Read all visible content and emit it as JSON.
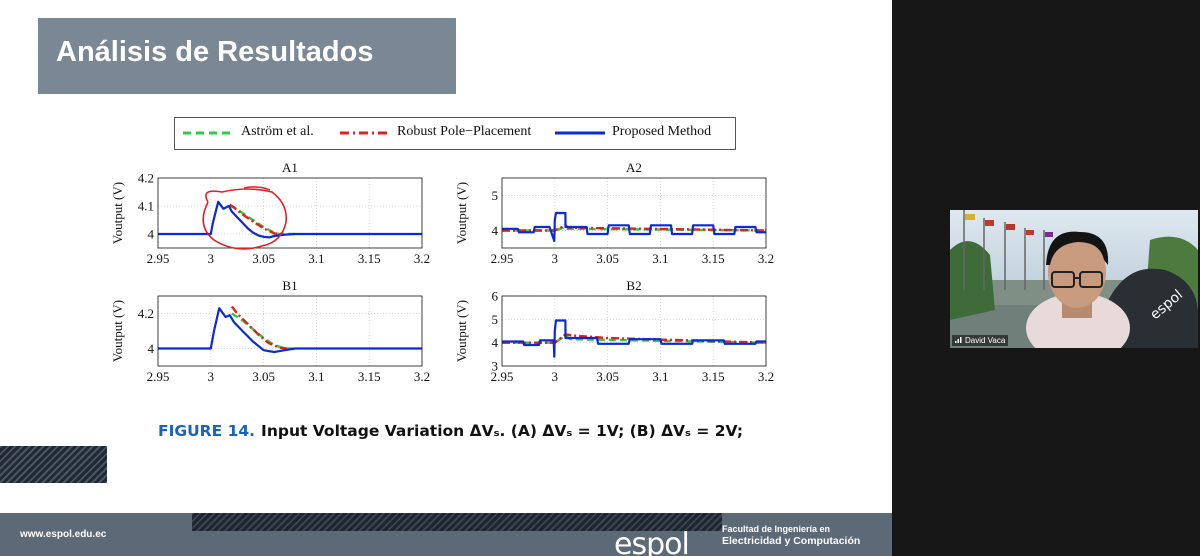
{
  "slide": {
    "title": "Análisis de Resultados",
    "legend": [
      {
        "label": "Aström et al.",
        "color": "#2ecc40",
        "style": "dashed"
      },
      {
        "label": "Robust Pole−Placement",
        "color": "#dd2222",
        "style": "dashdot"
      },
      {
        "label": "Proposed Method",
        "color": "#0a2ad8",
        "style": "solid"
      }
    ],
    "caption": {
      "figure": "FIGURE 14.",
      "text": "Input Voltage Variation ΔVₛ. (A) ΔVₛ = 1V; (B) ΔVₛ = 2V;"
    },
    "footer": {
      "url": "www.espol.edu.ec",
      "logo": "espol",
      "faculty_line1": "Facultad de Ingeniería en",
      "faculty_line2": "Electricidad y Computación"
    }
  },
  "chart_data": [
    {
      "type": "line",
      "title": "A1",
      "ylabel": "Voutput (V)",
      "xlim": [
        2.95,
        3.2
      ],
      "ylim": [
        3.95,
        4.2
      ],
      "xticks": [
        "2.95",
        "3",
        "3.05",
        "3.1",
        "3.15",
        "3.2"
      ],
      "yticks": [
        "4",
        "4.1",
        "4.2"
      ],
      "grid": true,
      "series": [
        {
          "name": "Aström et al.",
          "color": "#2ecc40",
          "style": "dashed",
          "x": [
            3.018,
            3.022,
            3.03,
            3.04,
            3.05,
            3.06,
            3.065,
            3.08
          ],
          "y": [
            4.1,
            4.095,
            4.075,
            4.05,
            4.025,
            4.005,
            4.0,
            4.0
          ]
        },
        {
          "name": "Robust Pole−Placement",
          "color": "#dd2222",
          "style": "dashdot",
          "x": [
            3.018,
            3.022,
            3.03,
            3.04,
            3.05,
            3.06,
            3.068
          ],
          "y": [
            4.105,
            4.095,
            4.07,
            4.045,
            4.02,
            4.002,
            4.0
          ]
        },
        {
          "name": "Proposed Method",
          "color": "#0a2ad8",
          "style": "solid",
          "x": [
            2.95,
            3.0,
            3.002,
            3.007,
            3.012,
            3.017,
            3.02,
            3.025,
            3.03,
            3.035,
            3.04,
            3.045,
            3.05,
            3.055,
            3.06,
            3.07,
            3.08,
            3.1,
            3.2
          ],
          "y": [
            4.0,
            4.0,
            4.04,
            4.115,
            4.09,
            4.1,
            4.08,
            4.06,
            4.04,
            4.02,
            4.005,
            3.995,
            3.99,
            3.988,
            3.993,
            3.998,
            4.0,
            4.0,
            4.0
          ]
        }
      ]
    },
    {
      "type": "line",
      "title": "A2",
      "ylabel": "Voutput (V)",
      "xlim": [
        2.95,
        3.2
      ],
      "ylim": [
        3.5,
        5.5
      ],
      "xticks": [
        "2.95",
        "3",
        "3.05",
        "3.1",
        "3.15",
        "3.2"
      ],
      "yticks": [
        "4",
        "5"
      ],
      "grid": true,
      "series": [
        {
          "name": "Aström et al.",
          "color": "#2ecc40",
          "style": "dashed",
          "x": [
            2.95,
            3.0,
            3.01,
            3.012,
            3.2
          ],
          "y": [
            4.0,
            4.0,
            4.1,
            4.05,
            4.0
          ]
        },
        {
          "name": "Robust Pole−Placement",
          "color": "#dd2222",
          "style": "dashdot",
          "x": [
            2.95,
            3.0,
            3.01,
            3.013,
            3.2
          ],
          "y": [
            4.0,
            4.0,
            4.15,
            4.08,
            4.0
          ]
        },
        {
          "name": "Proposed Method",
          "color": "#0a2ad8",
          "style": "solid",
          "x": [
            2.95,
            2.965,
            2.966,
            2.98,
            2.981,
            2.995,
            2.9995,
            3.0,
            3.001,
            3.01,
            3.0101,
            3.03,
            3.031,
            3.05,
            3.051,
            3.07,
            3.071,
            3.09,
            3.091,
            3.11,
            3.111,
            3.13,
            3.131,
            3.15,
            3.151,
            3.17,
            3.171,
            3.19,
            3.191,
            3.2
          ],
          "y": [
            4.05,
            4.05,
            3.95,
            3.95,
            4.1,
            4.1,
            3.7,
            4.3,
            4.5,
            4.5,
            4.1,
            4.1,
            3.9,
            3.9,
            4.15,
            4.15,
            3.9,
            3.9,
            4.15,
            4.15,
            3.9,
            3.9,
            4.15,
            4.15,
            3.9,
            3.9,
            4.1,
            4.1,
            3.95,
            3.95
          ]
        }
      ]
    },
    {
      "type": "line",
      "title": "B1",
      "ylabel": "Voutput (V)",
      "xlim": [
        2.95,
        3.2
      ],
      "ylim": [
        3.9,
        4.3
      ],
      "xticks": [
        "2.95",
        "3",
        "3.05",
        "3.1",
        "3.15",
        "3.2"
      ],
      "yticks": [
        "4",
        "4.2"
      ],
      "grid": true,
      "series": [
        {
          "name": "Aström et al.",
          "color": "#2ecc40",
          "style": "dashed",
          "x": [
            3.02,
            3.03,
            3.04,
            3.05,
            3.06,
            3.07,
            3.08
          ],
          "y": [
            4.2,
            4.16,
            4.11,
            4.06,
            4.02,
            4.0,
            4.0
          ]
        },
        {
          "name": "Robust Pole−Placement",
          "color": "#dd2222",
          "style": "dashdot",
          "x": [
            3.02,
            3.025,
            3.035,
            3.045,
            3.055,
            3.065,
            3.072
          ],
          "y": [
            4.24,
            4.2,
            4.14,
            4.08,
            4.03,
            4.005,
            4.0
          ]
        },
        {
          "name": "Proposed Method",
          "color": "#0a2ad8",
          "style": "solid",
          "x": [
            2.95,
            3.0,
            3.003,
            3.008,
            3.014,
            3.018,
            3.022,
            3.03,
            3.04,
            3.05,
            3.06,
            3.07,
            3.08,
            3.1,
            3.2
          ],
          "y": [
            4.0,
            4.0,
            4.1,
            4.23,
            4.18,
            4.19,
            4.15,
            4.1,
            4.04,
            3.99,
            3.98,
            3.99,
            4.0,
            4.0,
            4.0
          ]
        }
      ]
    },
    {
      "type": "line",
      "title": "B2",
      "ylabel": "Voutput (V)",
      "xlim": [
        2.95,
        3.2
      ],
      "ylim": [
        3.0,
        6.0
      ],
      "xticks": [
        "2.95",
        "3",
        "3.05",
        "3.1",
        "3.15",
        "3.2"
      ],
      "yticks": [
        "3",
        "4",
        "5",
        "6"
      ],
      "grid": true,
      "series": [
        {
          "name": "Aström et al.",
          "color": "#2ecc40",
          "style": "dashed",
          "x": [
            2.95,
            3.0,
            3.01,
            3.015,
            3.2
          ],
          "y": [
            4.0,
            4.0,
            4.3,
            4.15,
            4.0
          ]
        },
        {
          "name": "Robust Pole−Placement",
          "color": "#dd2222",
          "style": "dashdot",
          "x": [
            2.95,
            3.0,
            3.01,
            3.02,
            3.05,
            3.2
          ],
          "y": [
            4.0,
            4.0,
            4.35,
            4.3,
            4.2,
            4.0
          ]
        },
        {
          "name": "Proposed Method",
          "color": "#0a2ad8",
          "style": "solid",
          "x": [
            2.95,
            2.97,
            2.971,
            2.985,
            2.986,
            2.999,
            2.9995,
            3.0,
            3.001,
            3.01,
            3.0101,
            3.04,
            3.041,
            3.07,
            3.071,
            3.1,
            3.101,
            3.13,
            3.131,
            3.16,
            3.161,
            3.19,
            3.191,
            3.2
          ],
          "y": [
            4.05,
            4.05,
            3.9,
            3.9,
            4.1,
            4.1,
            3.4,
            4.5,
            4.95,
            4.95,
            4.2,
            4.2,
            3.95,
            3.95,
            4.15,
            4.15,
            3.95,
            3.95,
            4.1,
            4.1,
            3.95,
            3.95,
            4.05,
            4.05
          ]
        }
      ]
    }
  ],
  "webcam": {
    "name": "David Vaca"
  }
}
